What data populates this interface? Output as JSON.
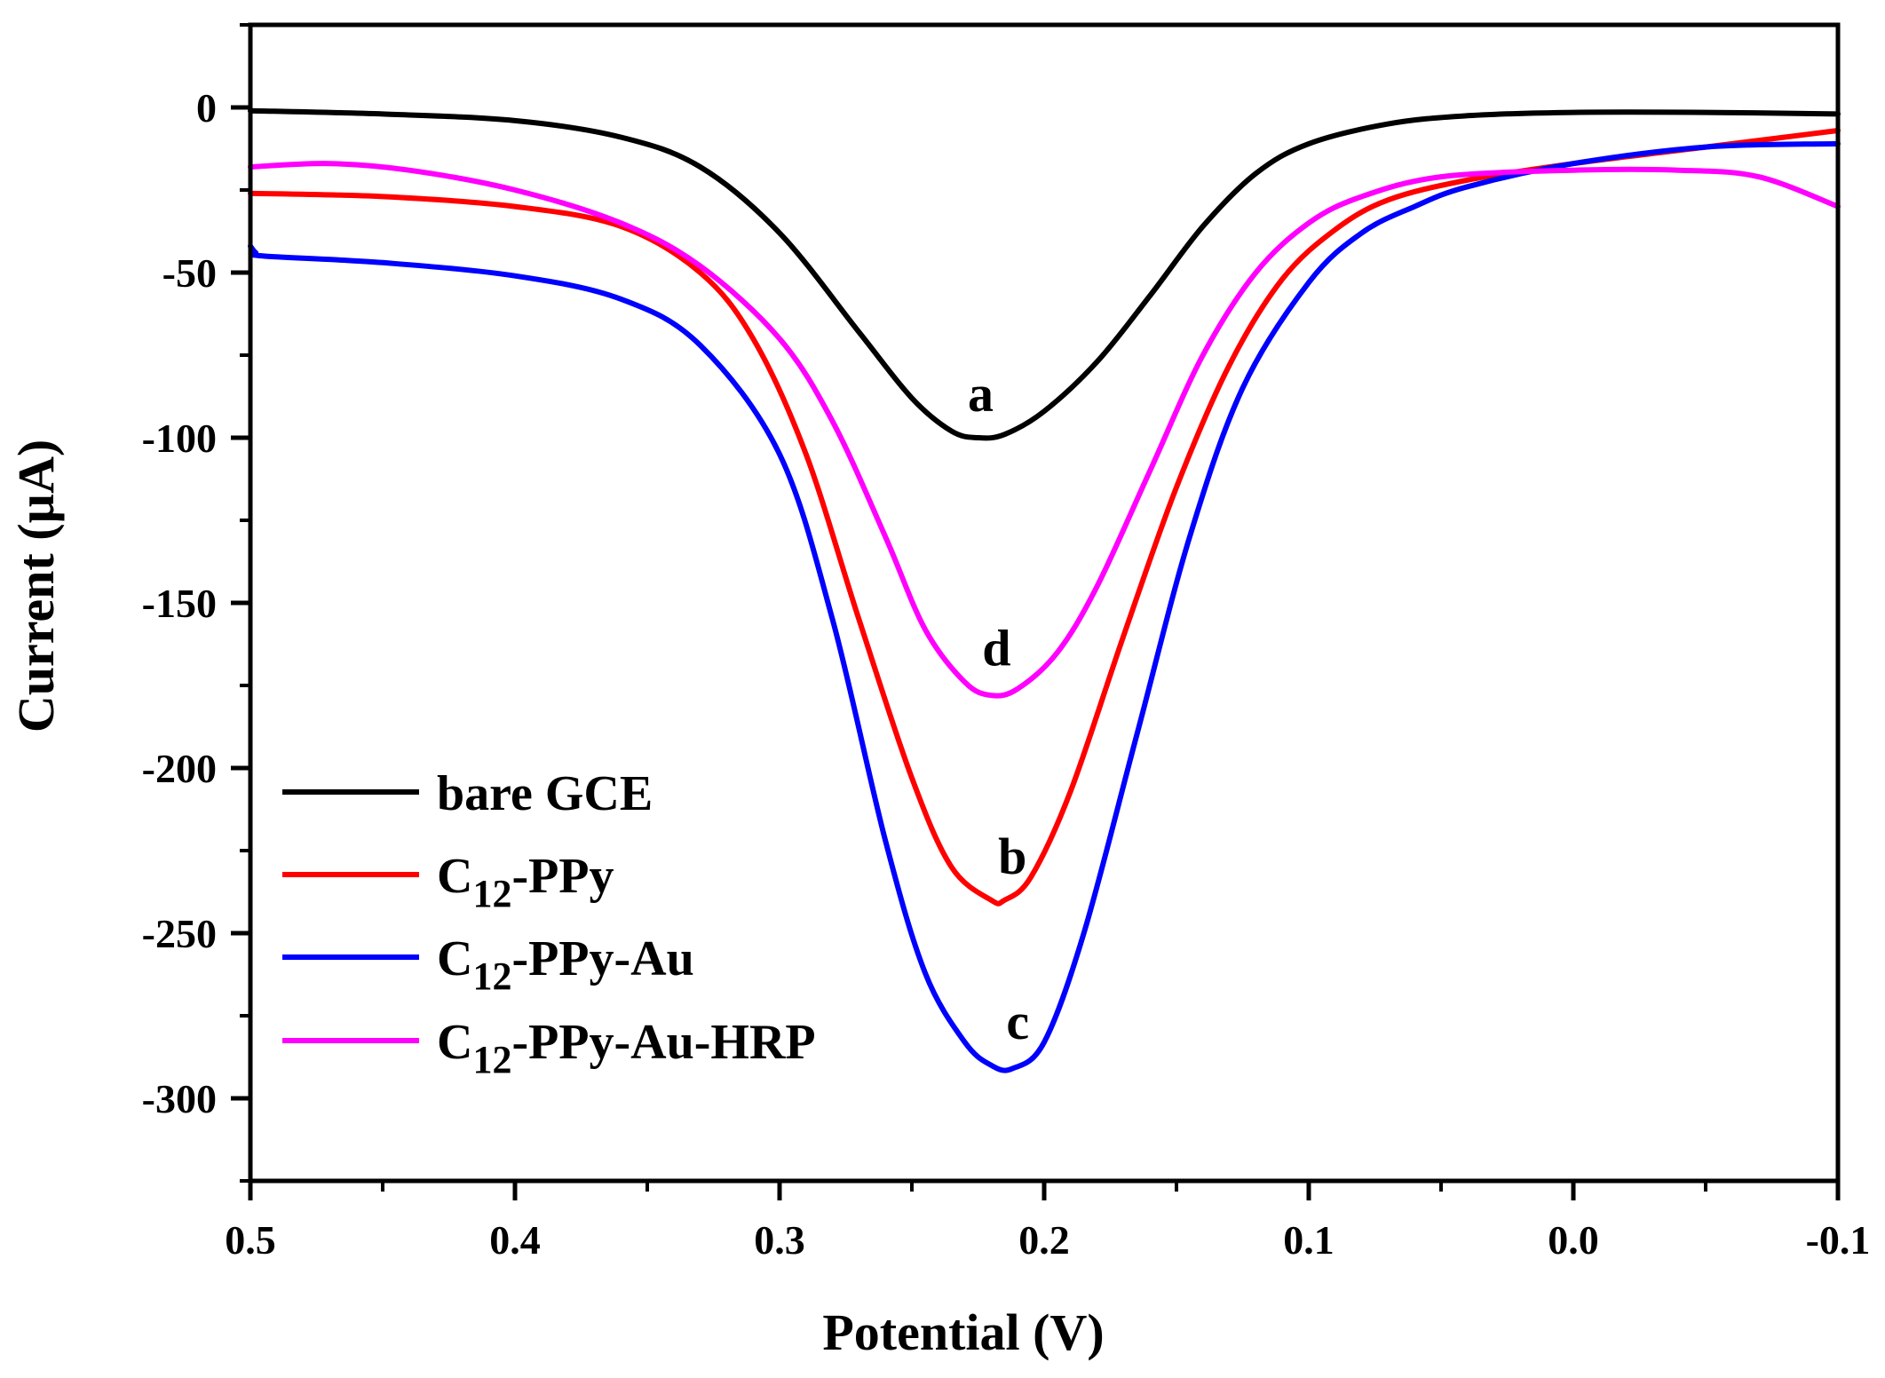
{
  "chart_data": {
    "type": "line",
    "title": "",
    "xlabel": "Potential (V)",
    "ylabel": "Current (µA)",
    "xlim": [
      0.5,
      -0.1
    ],
    "ylim": [
      -325,
      25
    ],
    "x_reversed": true,
    "x_ticks": [
      0.5,
      0.4,
      0.3,
      0.2,
      0.1,
      0.0,
      -0.1
    ],
    "x_tick_labels": [
      "0.5",
      "0.4",
      "0.3",
      "0.2",
      "0.1",
      "0.0",
      "-0.1"
    ],
    "y_ticks": [
      0,
      -50,
      -100,
      -150,
      -200,
      -250,
      -300
    ],
    "y_tick_labels": [
      "0",
      "-50",
      "-100",
      "-150",
      "-200",
      "-250",
      "-300"
    ],
    "grid": false,
    "legend_position": "bottom-left",
    "series": [
      {
        "name": "bare GCE",
        "label_main": "bare GCE",
        "label_sub": "",
        "label_tail": "",
        "color": "#000000",
        "curve_letter": "a",
        "letter_at": [
          0.224,
          -92
        ],
        "x": [
          0.5,
          0.45,
          0.4,
          0.36,
          0.33,
          0.3,
          0.27,
          0.25,
          0.235,
          0.225,
          0.215,
          0.2,
          0.18,
          0.16,
          0.14,
          0.12,
          0.1,
          0.07,
          0.04,
          0.0,
          -0.05,
          -0.1
        ],
        "y": [
          -1,
          -2,
          -4,
          -9,
          -18,
          -38,
          -68,
          -88,
          -98,
          -100,
          -99,
          -92,
          -77,
          -57,
          -36,
          -20,
          -11,
          -5,
          -2.5,
          -1.5,
          -1.5,
          -2
        ]
      },
      {
        "name": "C12-PPy",
        "label_main": "C",
        "label_sub": "12",
        "label_tail": "-PPy",
        "color": "#ff0000",
        "curve_letter": "b",
        "letter_at": [
          0.212,
          -232
        ],
        "x": [
          0.5,
          0.45,
          0.4,
          0.36,
          0.33,
          0.31,
          0.29,
          0.27,
          0.25,
          0.235,
          0.22,
          0.215,
          0.205,
          0.19,
          0.17,
          0.15,
          0.13,
          0.11,
          0.09,
          0.07,
          0.04,
          0.0,
          -0.05,
          -0.1
        ],
        "y": [
          -26,
          -27,
          -30,
          -36,
          -50,
          -70,
          -105,
          -155,
          -203,
          -230,
          -240,
          -240,
          -233,
          -207,
          -160,
          -115,
          -78,
          -52,
          -37,
          -28,
          -22,
          -17,
          -12,
          -7
        ]
      },
      {
        "name": "C12-PPy-Au",
        "label_main": "C",
        "label_sub": "12",
        "label_tail": "-PPy-Au",
        "color": "#0000ff",
        "curve_letter": "c",
        "letter_at": [
          0.21,
          -282
        ],
        "x": [
          0.5,
          0.498,
          0.495,
          0.45,
          0.4,
          0.36,
          0.33,
          0.3,
          0.28,
          0.26,
          0.245,
          0.23,
          0.22,
          0.212,
          0.2,
          0.185,
          0.165,
          0.145,
          0.125,
          0.1,
          0.08,
          0.06,
          0.04,
          0.0,
          -0.05,
          -0.1
        ],
        "y": [
          -42,
          -44,
          -45,
          -47,
          -51,
          -58,
          -72,
          -105,
          -155,
          -222,
          -262,
          -283,
          -290,
          -291,
          -283,
          -250,
          -190,
          -130,
          -85,
          -53,
          -38,
          -30,
          -24,
          -17,
          -12,
          -11
        ]
      },
      {
        "name": "C12-PPy-Au-HRP",
        "label_main": "C",
        "label_sub": "12",
        "label_tail": "-PPy-Au-HRP",
        "color": "#ff00ff",
        "curve_letter": "d",
        "letter_at": [
          0.218,
          -169
        ],
        "x": [
          0.5,
          0.47,
          0.44,
          0.4,
          0.36,
          0.33,
          0.3,
          0.28,
          0.26,
          0.245,
          0.23,
          0.22,
          0.21,
          0.195,
          0.18,
          0.16,
          0.14,
          0.12,
          0.1,
          0.08,
          0.05,
          0.0,
          -0.04,
          -0.07,
          -0.1
        ],
        "y": [
          -18,
          -17,
          -19,
          -25,
          -35,
          -48,
          -70,
          -95,
          -130,
          -158,
          -174,
          -178,
          -176,
          -165,
          -145,
          -110,
          -75,
          -50,
          -35,
          -27,
          -21,
          -19,
          -19,
          -21,
          -30
        ]
      }
    ]
  }
}
